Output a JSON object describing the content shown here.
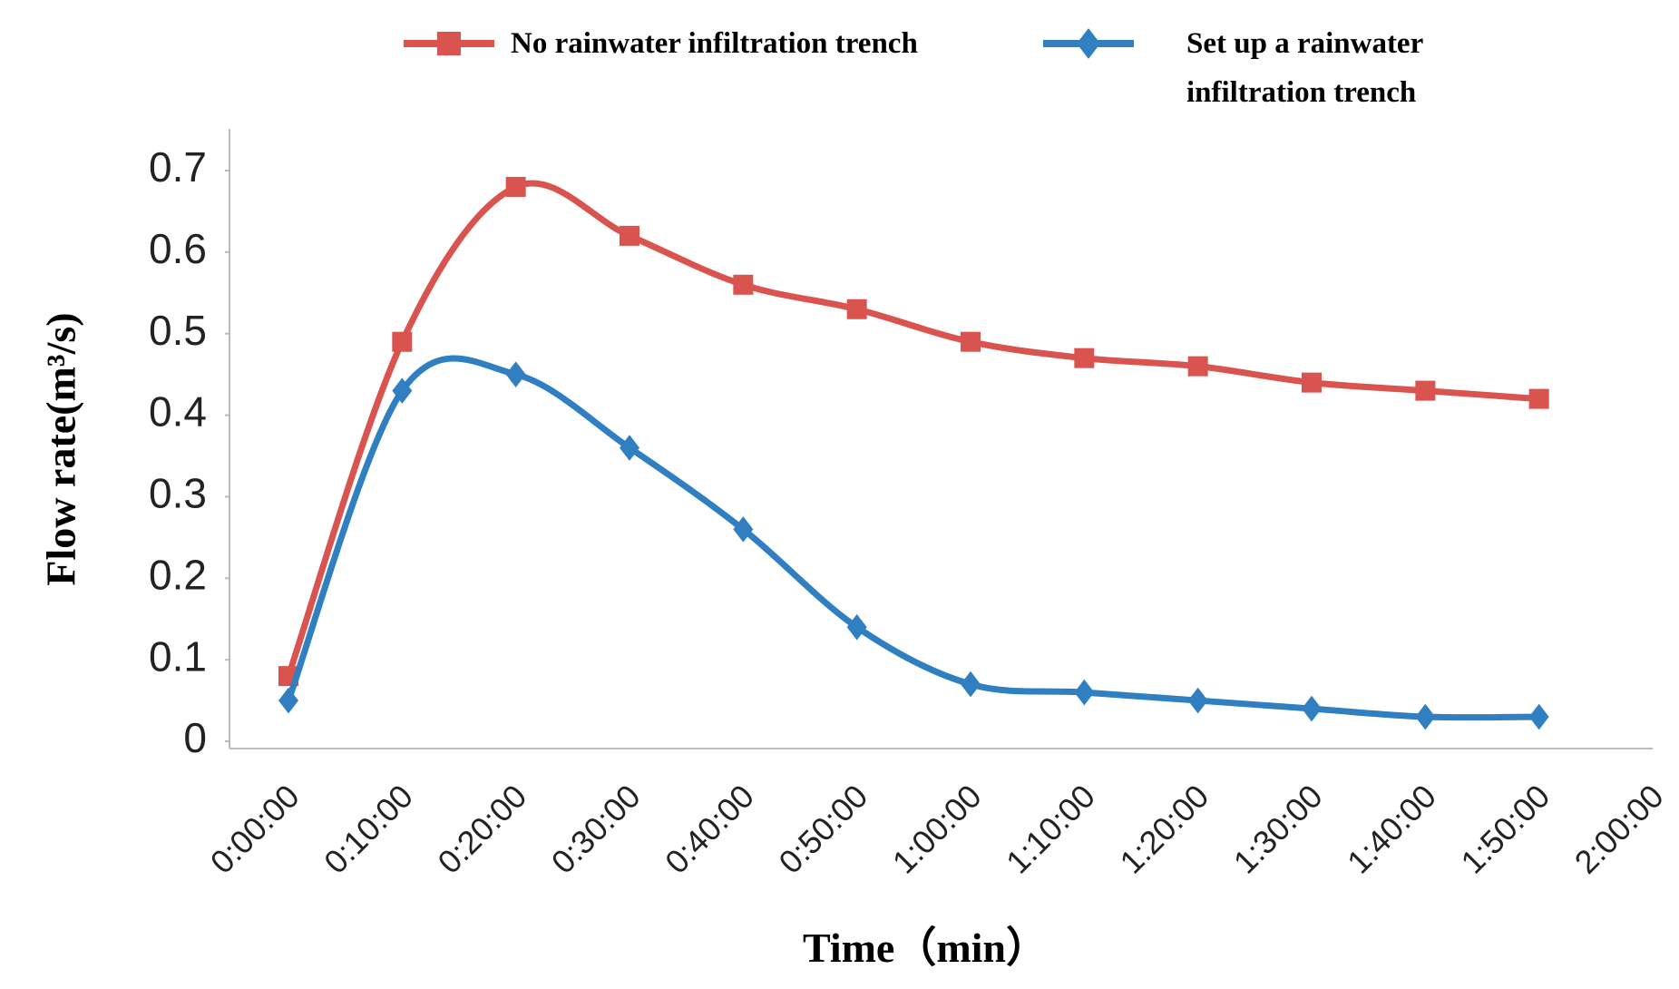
{
  "chart_data": {
    "type": "line",
    "x_label": "Time（min）",
    "y_label": "Flow rate(m³/s)",
    "categories": [
      "0:00:00",
      "0:10:00",
      "0:20:00",
      "0:30:00",
      "0:40:00",
      "0:50:00",
      "1:00:00",
      "1:10:00",
      "1:20:00",
      "1:30:00",
      "1:40:00",
      "1:50:00",
      "2:00:00"
    ],
    "series": [
      {
        "name": "No rainwater infiltration trench",
        "color": "#d9534f",
        "marker": "square",
        "values": [
          0.08,
          0.49,
          0.68,
          0.62,
          0.56,
          0.53,
          0.49,
          0.47,
          0.46,
          0.44,
          0.43,
          0.42,
          null
        ]
      },
      {
        "name": "Set up a rainwater infiltration trench",
        "color": "#2f7fc1",
        "marker": "diamond",
        "values": [
          0.05,
          0.43,
          0.45,
          0.36,
          0.26,
          0.14,
          0.07,
          0.06,
          0.05,
          0.04,
          0.03,
          0.03,
          null
        ]
      }
    ],
    "ylim": [
      0,
      0.75
    ],
    "yticks": [
      {
        "value": 0,
        "label": "0"
      },
      0.1,
      0.2,
      0.3,
      0.4,
      0.5,
      0.6,
      0.7
    ],
    "legend": "top"
  }
}
